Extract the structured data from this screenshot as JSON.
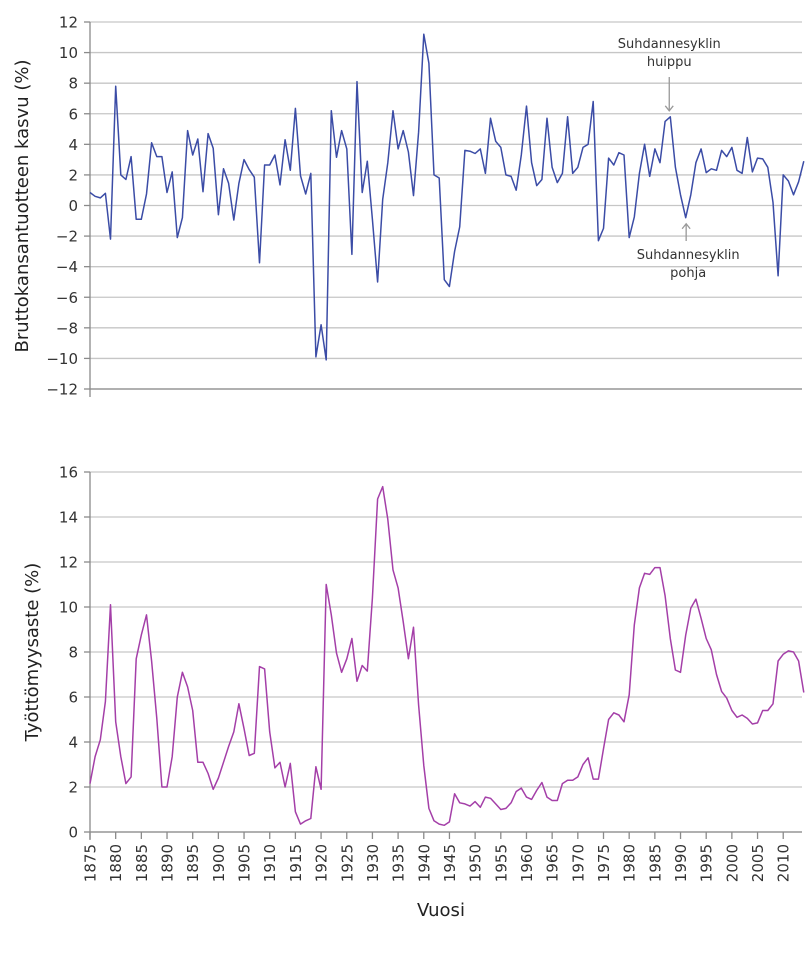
{
  "chart_data": [
    {
      "type": "line",
      "ylabel": "Bruttokansantuotteen kasvu (%)",
      "xlabel": "",
      "ylim": [
        -12,
        12
      ],
      "yticks": [
        12,
        10,
        8,
        6,
        4,
        2,
        0,
        -2,
        -4,
        -6,
        -8,
        -10,
        -12
      ],
      "xlim": [
        1875,
        2014
      ],
      "grid": true,
      "color": "#3b4ca6",
      "x_start": 1875,
      "values": [
        0.85,
        0.6,
        0.5,
        0.8,
        -2.2,
        7.8,
        2.0,
        1.7,
        3.2,
        -0.9,
        -0.9,
        0.75,
        4.1,
        3.2,
        3.2,
        0.85,
        2.2,
        -2.1,
        -0.8,
        4.9,
        3.3,
        4.35,
        0.9,
        4.7,
        3.75,
        -0.6,
        2.4,
        1.45,
        -0.95,
        1.45,
        3.0,
        2.35,
        1.85,
        -3.75,
        2.65,
        2.65,
        3.3,
        1.35,
        4.3,
        2.3,
        6.35,
        1.95,
        0.75,
        2.1,
        -9.9,
        -7.8,
        -10.1,
        6.2,
        3.15,
        4.9,
        3.7,
        -3.2,
        8.1,
        0.85,
        2.9,
        -0.9,
        -5.0,
        0.4,
        2.8,
        6.2,
        3.7,
        4.9,
        3.5,
        0.65,
        4.8,
        11.2,
        9.3,
        2.0,
        1.8,
        -4.85,
        -5.3,
        -3.0,
        -1.4,
        3.6,
        3.55,
        3.4,
        3.7,
        2.1,
        5.7,
        4.2,
        3.8,
        2.0,
        1.9,
        1.0,
        3.3,
        6.5,
        2.8,
        1.3,
        1.7,
        5.7,
        2.5,
        1.5,
        2.1,
        5.8,
        2.1,
        2.5,
        3.8,
        4.0,
        6.8,
        -2.3,
        -1.5,
        3.1,
        2.65,
        3.45,
        3.3,
        -2.1,
        -0.75,
        2.1,
        4.0,
        1.9,
        3.7,
        2.8,
        5.5,
        5.8,
        2.5,
        0.7,
        -0.8,
        0.7,
        2.8,
        3.7,
        2.15,
        2.4,
        2.3,
        3.6,
        3.2,
        3.8,
        2.3,
        2.1,
        4.45,
        2.2,
        3.1,
        3.05,
        2.5,
        0.2,
        -4.6,
        2.0,
        1.6,
        0.7,
        1.55,
        2.9
      ],
      "annotations": [
        {
          "text": [
            "Suhdannesyklin",
            "huippu"
          ],
          "year": 1988,
          "arrow": "down"
        },
        {
          "text": [
            "Suhdannesyklin",
            "pohja"
          ],
          "year": 1991,
          "arrow": "up"
        }
      ]
    },
    {
      "type": "line",
      "ylabel": "Työttömyysaste (%)",
      "xlabel": "Vuosi",
      "ylim": [
        0,
        16
      ],
      "yticks": [
        16,
        14,
        12,
        10,
        8,
        6,
        4,
        2,
        0
      ],
      "xlim": [
        1875,
        2014
      ],
      "xticks": [
        1875,
        1880,
        1885,
        1890,
        1895,
        1900,
        1905,
        1910,
        1915,
        1920,
        1925,
        1930,
        1935,
        1940,
        1945,
        1950,
        1955,
        1960,
        1965,
        1970,
        1975,
        1980,
        1985,
        1990,
        1995,
        2000,
        2005,
        2010
      ],
      "grid": true,
      "color": "#a43fa8",
      "x_start": 1875,
      "values": [
        2.15,
        3.35,
        4.1,
        5.8,
        10.1,
        4.9,
        3.35,
        2.15,
        2.45,
        7.7,
        8.75,
        9.65,
        7.6,
        5.05,
        2.0,
        2.0,
        3.35,
        6.0,
        7.1,
        6.45,
        5.4,
        3.1,
        3.1,
        2.6,
        1.9,
        2.4,
        3.1,
        3.8,
        4.45,
        5.7,
        4.6,
        3.4,
        3.5,
        7.35,
        7.25,
        4.45,
        2.85,
        3.1,
        2.0,
        3.05,
        0.9,
        0.35,
        0.5,
        0.6,
        2.9,
        1.9,
        11.0,
        9.65,
        7.95,
        7.1,
        7.7,
        8.6,
        6.7,
        7.4,
        7.15,
        10.4,
        14.8,
        15.35,
        13.9,
        11.65,
        10.85,
        9.35,
        7.7,
        9.1,
        5.65,
        2.95,
        1.05,
        0.5,
        0.35,
        0.3,
        0.45,
        1.7,
        1.3,
        1.25,
        1.15,
        1.35,
        1.1,
        1.55,
        1.5,
        1.25,
        1.0,
        1.05,
        1.3,
        1.8,
        1.95,
        1.55,
        1.45,
        1.85,
        2.2,
        1.55,
        1.4,
        1.4,
        2.15,
        2.3,
        2.3,
        2.45,
        3.0,
        3.3,
        2.35,
        2.35,
        3.7,
        5.0,
        5.3,
        5.2,
        4.9,
        6.1,
        9.2,
        10.85,
        11.5,
        11.45,
        11.75,
        11.75,
        10.5,
        8.6,
        7.2,
        7.1,
        8.75,
        9.95,
        10.35,
        9.5,
        8.6,
        8.1,
        7.0,
        6.25,
        5.95,
        5.4,
        5.1,
        5.2,
        5.05,
        4.8,
        4.85,
        5.4,
        5.4,
        5.7,
        7.6,
        7.9,
        8.05,
        8.0,
        7.6,
        6.2
      ]
    }
  ]
}
